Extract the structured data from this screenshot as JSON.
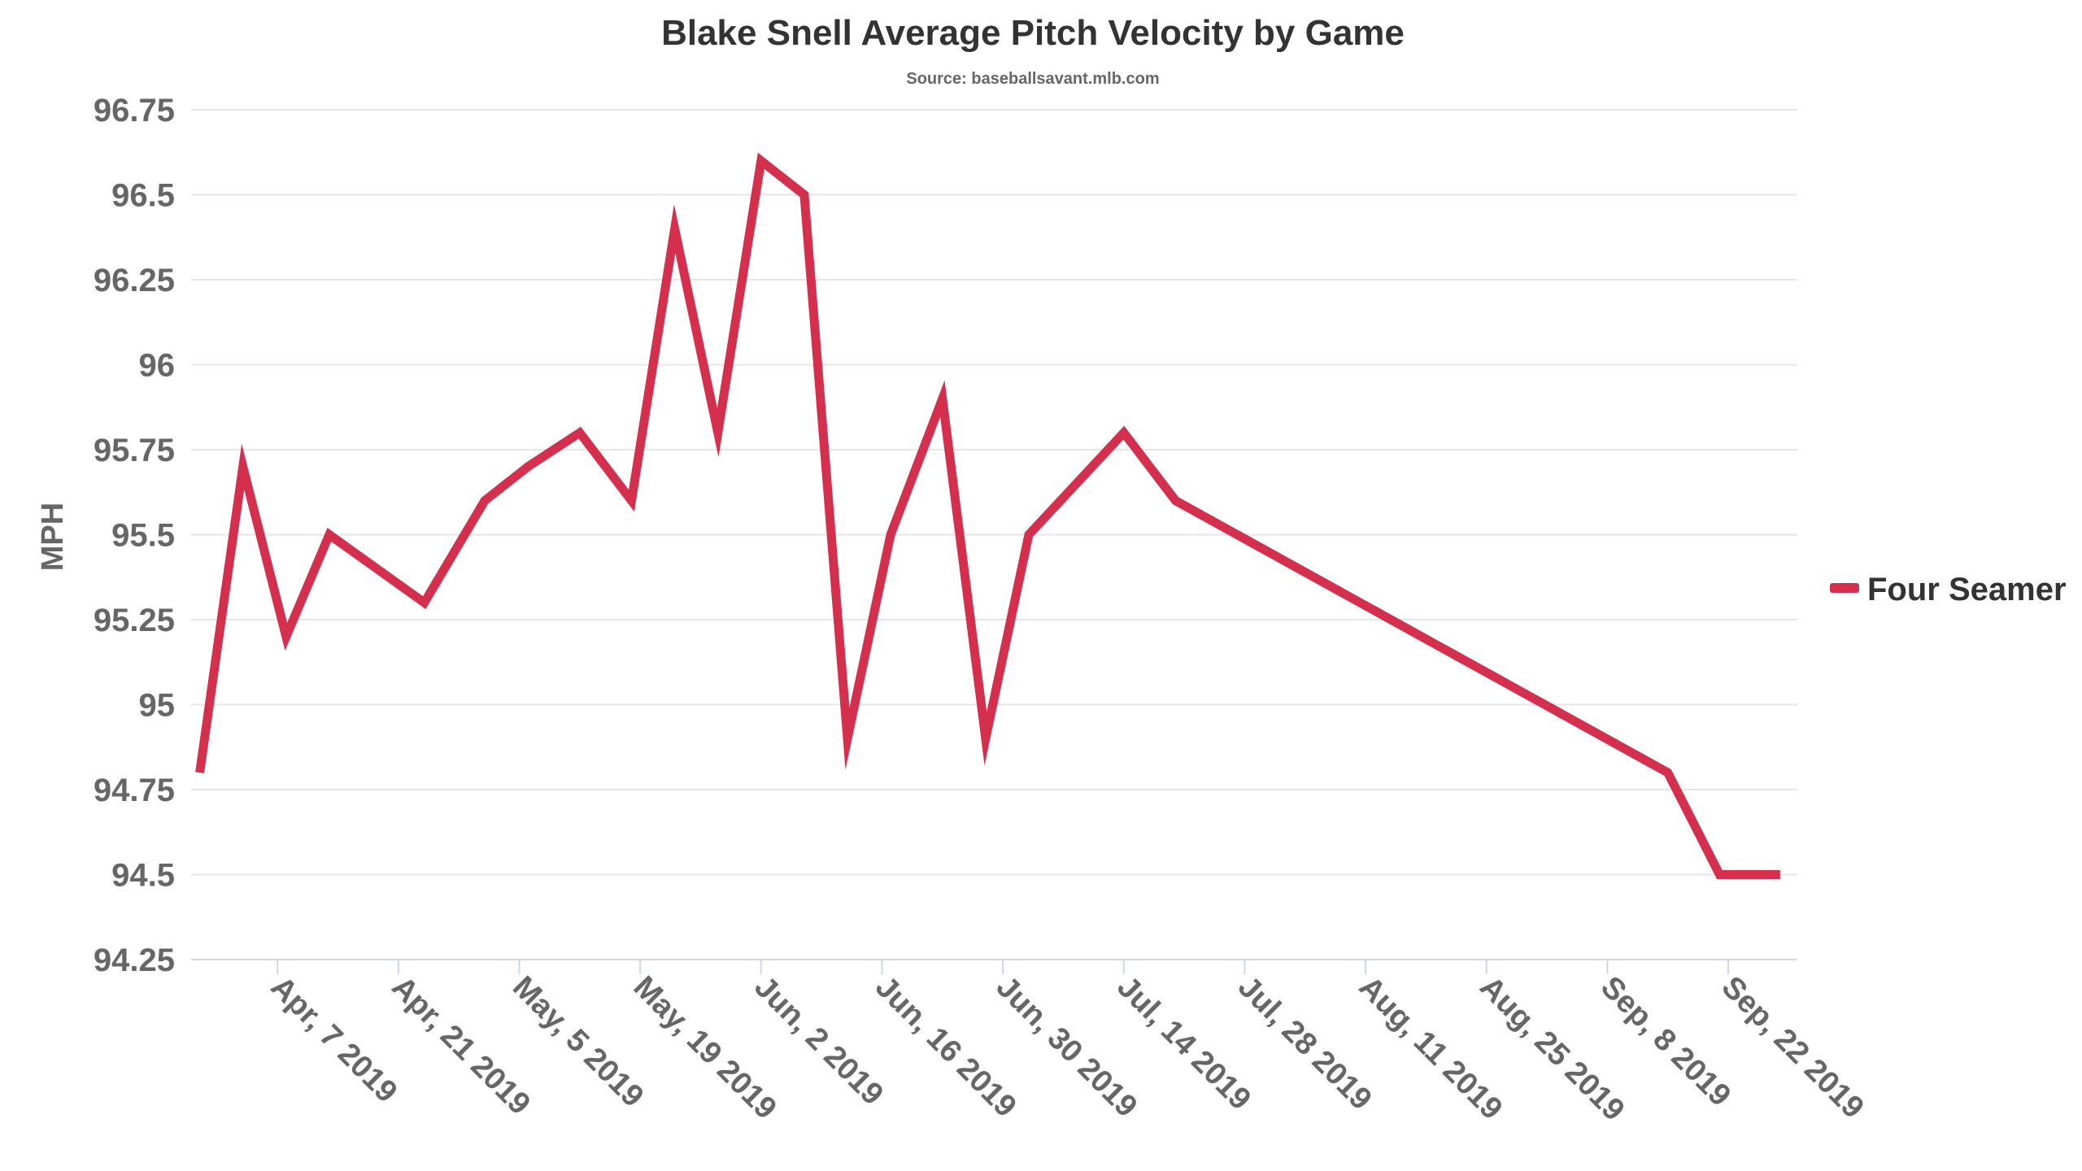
{
  "chart_data": {
    "type": "line",
    "title": "Blake Snell Average Pitch Velocity by Game",
    "subtitle": "Source: baseballsavant.mlb.com",
    "ylabel": "MPH",
    "xlabel": "",
    "ylim": [
      94.25,
      96.75
    ],
    "yticks": [
      "96.75",
      "96.5",
      "96.25",
      "96",
      "95.75",
      "95.5",
      "95.25",
      "95",
      "94.75",
      "94.5",
      "94.25"
    ],
    "xlim": [
      "2019-03-28",
      "2019-09-30"
    ],
    "xticks": [
      {
        "date": "2019-04-07",
        "label": "Apr, 7 2019"
      },
      {
        "date": "2019-04-21",
        "label": "Apr, 21 2019"
      },
      {
        "date": "2019-05-05",
        "label": "May, 5 2019"
      },
      {
        "date": "2019-05-19",
        "label": "May, 19 2019"
      },
      {
        "date": "2019-06-02",
        "label": "Jun, 2 2019"
      },
      {
        "date": "2019-06-16",
        "label": "Jun, 16 2019"
      },
      {
        "date": "2019-06-30",
        "label": "Jun, 30 2019"
      },
      {
        "date": "2019-07-14",
        "label": "Jul, 14 2019"
      },
      {
        "date": "2019-07-28",
        "label": "Jul, 28 2019"
      },
      {
        "date": "2019-08-11",
        "label": "Aug, 11 2019"
      },
      {
        "date": "2019-08-25",
        "label": "Aug, 25 2019"
      },
      {
        "date": "2019-09-08",
        "label": "Sep, 8 2019"
      },
      {
        "date": "2019-09-22",
        "label": "Sep, 22 2019"
      }
    ],
    "legend_position": "right",
    "grid": true,
    "series": [
      {
        "name": "Four Seamer",
        "color": "#d4304e",
        "x": [
          "2019-03-29",
          "2019-04-03",
          "2019-04-08",
          "2019-04-13",
          "2019-04-24",
          "2019-05-01",
          "2019-05-06",
          "2019-05-12",
          "2019-05-18",
          "2019-05-23",
          "2019-05-28",
          "2019-06-02",
          "2019-06-07",
          "2019-06-12",
          "2019-06-17",
          "2019-06-23",
          "2019-06-28",
          "2019-07-03",
          "2019-07-14",
          "2019-07-20",
          "2019-09-15",
          "2019-09-21",
          "2019-09-28"
        ],
        "values": [
          94.8,
          95.7,
          95.2,
          95.5,
          95.3,
          95.6,
          95.7,
          95.8,
          95.6,
          96.4,
          95.8,
          96.6,
          96.5,
          94.9,
          95.5,
          95.9,
          94.9,
          95.5,
          95.8,
          95.6,
          94.8,
          94.5,
          94.5
        ]
      }
    ]
  }
}
